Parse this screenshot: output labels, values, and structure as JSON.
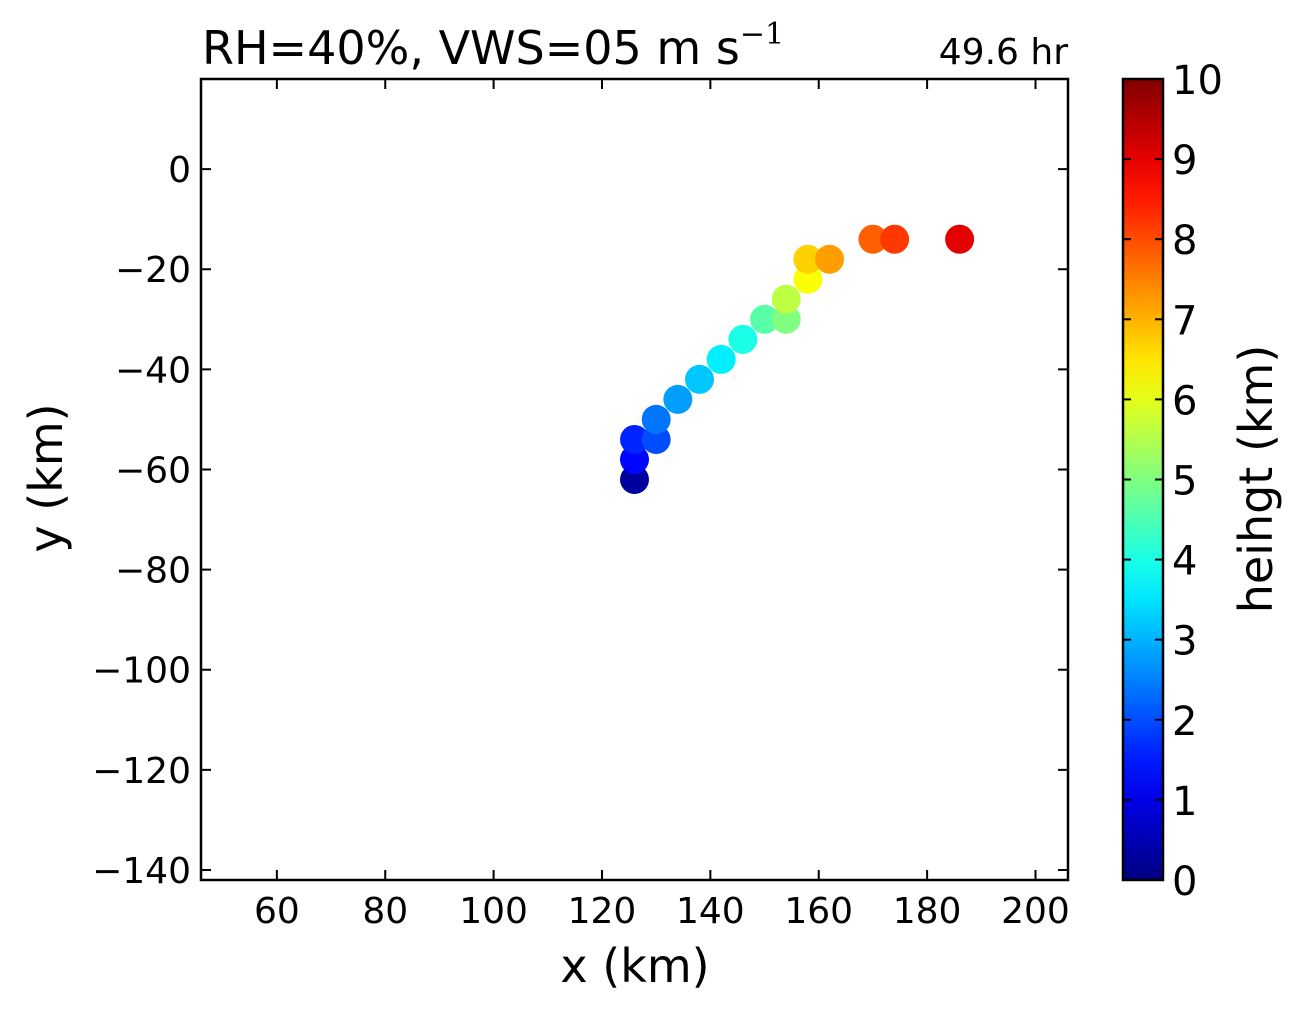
{
  "chart_data": {
    "type": "scatter",
    "title": "RH=40%, VWS=05 m s",
    "title_superscript": "−1",
    "time_label": "49.6 hr",
    "time_label_color": "#0000ff",
    "xlabel": "x (km)",
    "ylabel": "y (km)",
    "xlim": [
      46,
      206
    ],
    "ylim": [
      -142,
      18
    ],
    "x_ticks": [
      60,
      80,
      100,
      120,
      140,
      160,
      180,
      200
    ],
    "y_ticks": [
      0,
      -20,
      -40,
      -60,
      -80,
      -100,
      -120,
      -140
    ],
    "x_tick_labels": [
      "60",
      "80",
      "100",
      "120",
      "140",
      "160",
      "180",
      "200"
    ],
    "y_tick_labels": [
      "0",
      "−20",
      "−40",
      "−60",
      "−80",
      "−100",
      "−120",
      "−140"
    ],
    "grid": false,
    "colormap": "jet",
    "colorbar": {
      "label": "heihgt (km)",
      "range": [
        0,
        10
      ],
      "ticks": [
        0,
        1,
        2,
        3,
        4,
        5,
        6,
        7,
        8,
        9,
        10
      ],
      "tick_labels": [
        "0",
        "1",
        "2",
        "3",
        "4",
        "5",
        "6",
        "7",
        "8",
        "9",
        "10"
      ]
    },
    "points": [
      {
        "x": 126,
        "y": -62,
        "height": 0.3
      },
      {
        "x": 126,
        "y": -58,
        "height": 1.3
      },
      {
        "x": 126,
        "y": -54,
        "height": 1.6
      },
      {
        "x": 130,
        "y": -54,
        "height": 2.0
      },
      {
        "x": 130,
        "y": -50,
        "height": 2.4
      },
      {
        "x": 134,
        "y": -46,
        "height": 2.8
      },
      {
        "x": 138,
        "y": -42,
        "height": 3.2
      },
      {
        "x": 142,
        "y": -38,
        "height": 3.6
      },
      {
        "x": 146,
        "y": -34,
        "height": 4.0
      },
      {
        "x": 150,
        "y": -30,
        "height": 4.6
      },
      {
        "x": 154,
        "y": -30,
        "height": 5.0
      },
      {
        "x": 154,
        "y": -26,
        "height": 5.6
      },
      {
        "x": 158,
        "y": -22,
        "height": 6.2
      },
      {
        "x": 158,
        "y": -18,
        "height": 6.7
      },
      {
        "x": 162,
        "y": -18,
        "height": 7.2
      },
      {
        "x": 170,
        "y": -14,
        "height": 7.8
      },
      {
        "x": 174,
        "y": -14,
        "height": 8.2
      },
      {
        "x": 186,
        "y": -14,
        "height": 9.0
      }
    ]
  }
}
